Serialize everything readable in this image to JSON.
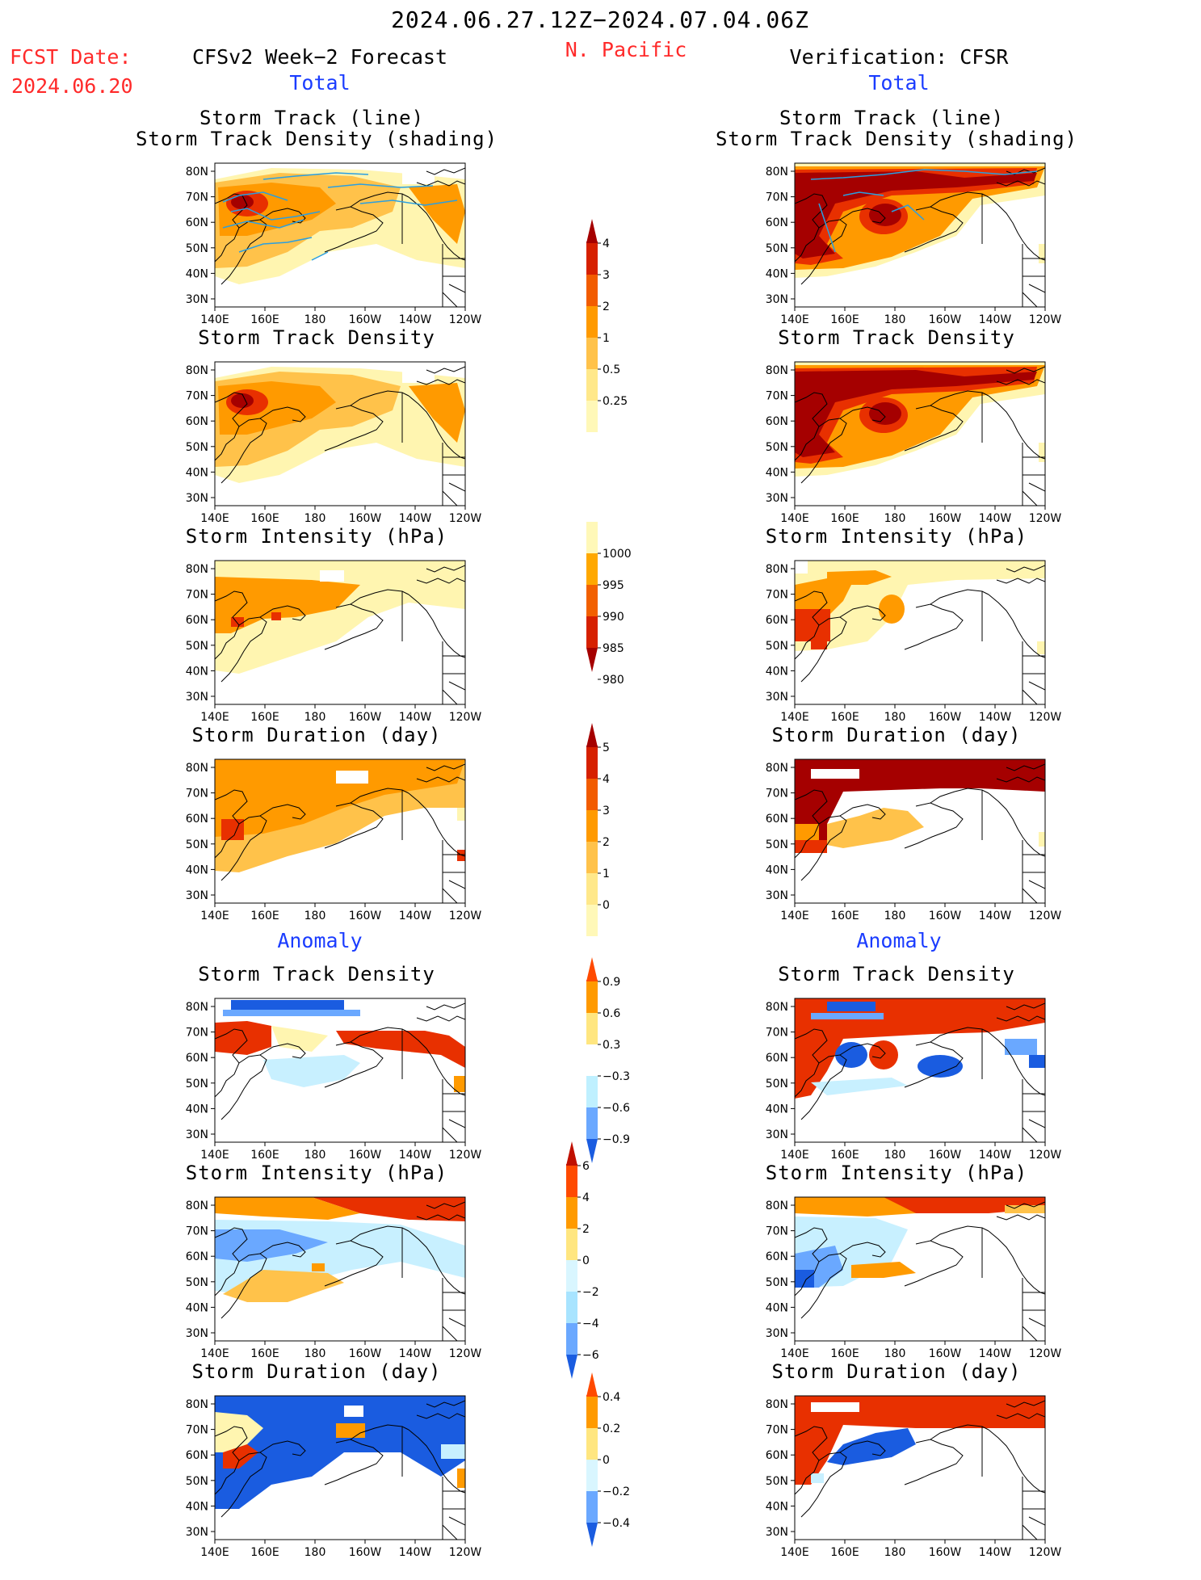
{
  "header": {
    "title": "2024.06.27.12Z−2024.07.04.06Z",
    "region": "N. Pacific",
    "fcst_label": "FCST Date:",
    "fcst_date": "2024.06.20",
    "left_heading": "CFSv2 Week−2 Forecast",
    "right_heading": "Verification: CFSR",
    "total_label": "Total",
    "anomaly_label": "Anomaly"
  },
  "panel_titles": {
    "track_line": "Storm Track (line)",
    "track_shading": "Storm Track Density (shading)",
    "density": "Storm Track Density",
    "intensity": "Storm Intensity (hPa)",
    "duration": "Storm Duration (day)"
  },
  "axes": {
    "lon_ticks": [
      "140E",
      "160E",
      "180",
      "160W",
      "140W",
      "120W"
    ],
    "lat_ticks": [
      "80N",
      "70N",
      "60N",
      "50N",
      "40N",
      "30N"
    ]
  },
  "colorbars": {
    "density_total": {
      "labels": [
        "4",
        "3",
        "2",
        "1",
        "0.5",
        "0.25"
      ],
      "colors": [
        "#a50000",
        "#d62000",
        "#f25c00",
        "#ff9a00",
        "#ffc24a",
        "#ffe88a",
        "#fff8b8"
      ]
    },
    "intensity_total": {
      "labels": [
        "1000",
        "995",
        "990",
        "985",
        "980"
      ],
      "colors": [
        "#fff8b8",
        "#ffa800",
        "#f26000",
        "#d62000",
        "#a50000"
      ]
    },
    "duration_total": {
      "labels": [
        "5",
        "4",
        "3",
        "2",
        "1",
        "0"
      ],
      "colors": [
        "#a50000",
        "#d62000",
        "#f25c00",
        "#ff9a00",
        "#ffc24a",
        "#ffe88a",
        "#fff8b8"
      ]
    },
    "density_anom": {
      "labels": [
        "0.9",
        "0.6",
        "0.3",
        "−0.3",
        "−0.6",
        "−0.9"
      ],
      "colors": [
        "#ff4a00",
        "#ff9a00",
        "#ffe680",
        "#ffffff",
        "#bff0ff",
        "#6aa8ff",
        "#1a5ce0"
      ]
    },
    "intensity_anom": {
      "labels": [
        "6",
        "4",
        "2",
        "0",
        "−2",
        "−4",
        "−6"
      ],
      "colors": [
        "#c01000",
        "#ff4a00",
        "#ff9a00",
        "#ffe680",
        "#d9f6ff",
        "#a8e4ff",
        "#6aa8ff",
        "#1a5ce0"
      ]
    },
    "duration_anom": {
      "labels": [
        "0.4",
        "0.2",
        "0",
        "−0.2",
        "−0.4"
      ],
      "colors": [
        "#ff4a00",
        "#ff9a00",
        "#ffe680",
        "#d9f6ff",
        "#6aa8ff",
        "#1a5ce0"
      ]
    }
  },
  "colors": {
    "dark_red": "#a50000",
    "red": "#e83000",
    "orange": "#ff9a00",
    "light_orange": "#ffc24a",
    "pale_yellow": "#fff5b0",
    "light_blue": "#c8f0ff",
    "mid_blue": "#6aa8ff",
    "blue": "#1a5ce0",
    "track_line": "#2a9fe0"
  }
}
